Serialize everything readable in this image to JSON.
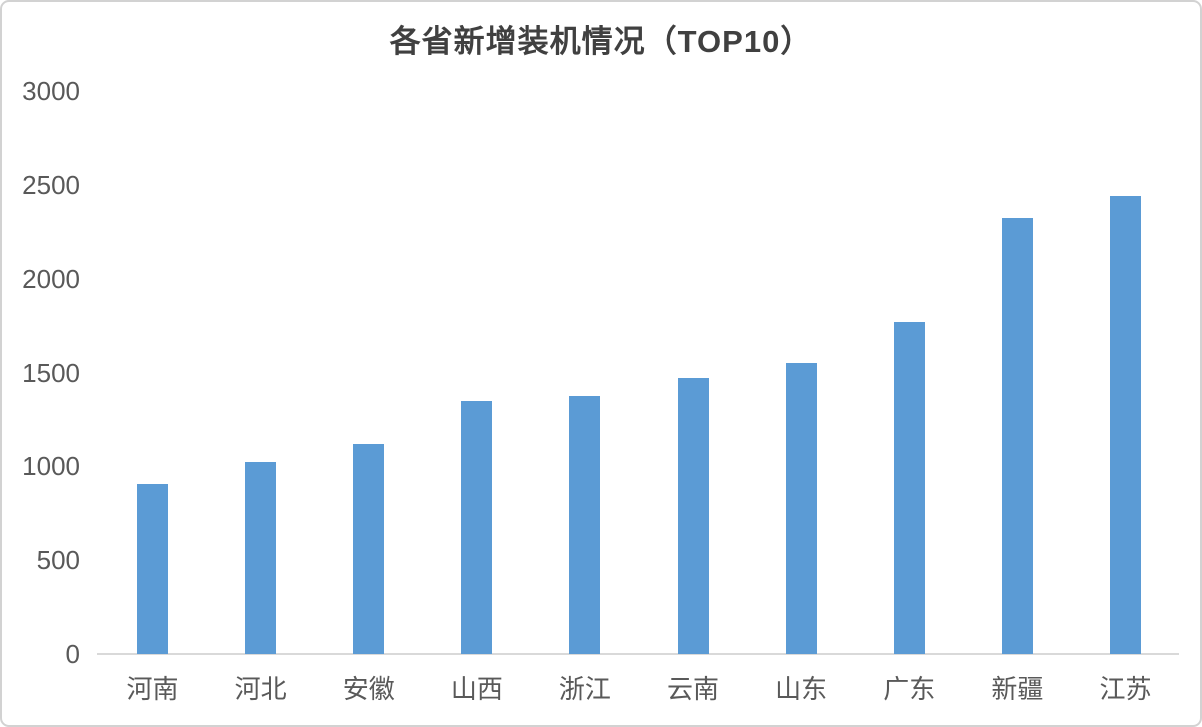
{
  "chart_data": {
    "type": "bar",
    "title": "各省新增装机情况（TOP10）",
    "categories": [
      "河南",
      "河北",
      "安徽",
      "山西",
      "浙江",
      "云南",
      "山东",
      "广东",
      "新疆",
      "江苏"
    ],
    "values": [
      905,
      1025,
      1120,
      1350,
      1375,
      1470,
      1550,
      1770,
      2325,
      2440
    ],
    "xlabel": "",
    "ylabel": "",
    "ylim": [
      0,
      3000
    ],
    "ytick_step": 500,
    "ytick_labels": [
      "0",
      "500",
      "1000",
      "1500",
      "2000",
      "2500",
      "3000"
    ],
    "grid": false,
    "legend": "none",
    "bar_color": "#5b9bd5",
    "title_color": "#404040",
    "axis_label_color": "#595959",
    "axis_line_color": "#d9d9d9"
  }
}
